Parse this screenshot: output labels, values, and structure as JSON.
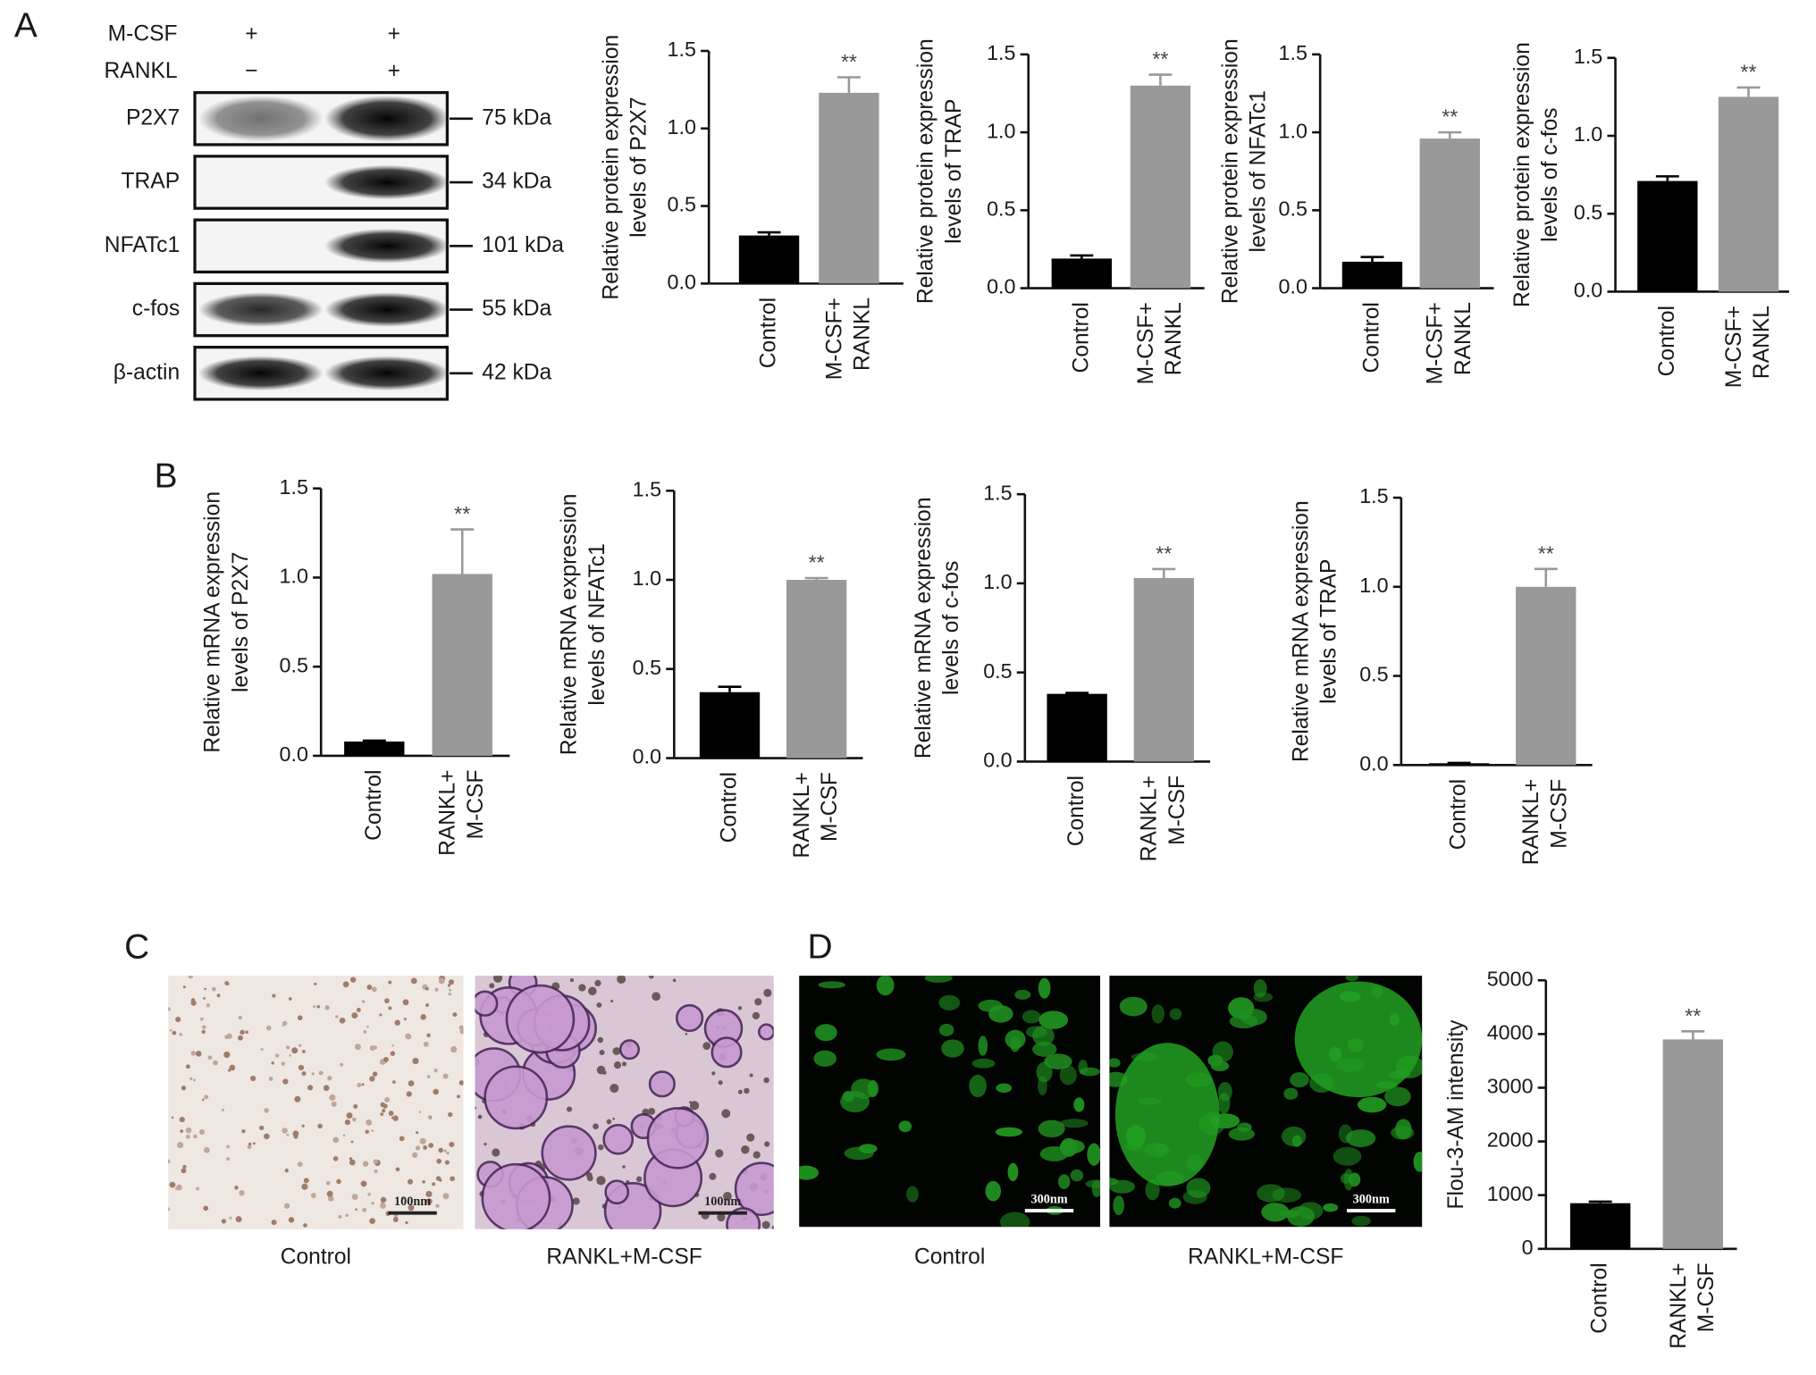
{
  "panel_labels": [
    "A",
    "B",
    "C",
    "D"
  ],
  "western_blot": {
    "treatments": [
      {
        "name": "M-CSF",
        "lanes": [
          "+",
          "+"
        ]
      },
      {
        "name": "RANKL",
        "lanes": [
          "−",
          "+"
        ]
      }
    ],
    "proteins": [
      {
        "name": "P2X7",
        "size": "75 kDa"
      },
      {
        "name": "TRAP",
        "size": "34 kDa"
      },
      {
        "name": "NFATc1",
        "size": "101 kDa"
      },
      {
        "name": "c-fos",
        "size": "55 kDa"
      },
      {
        "name": "β-actin",
        "size": "42 kDa"
      }
    ]
  },
  "micrographs": {
    "C": {
      "captions": [
        "Control",
        "RANKL+M-CSF"
      ],
      "scale_bar": "100nm"
    },
    "D": {
      "captions": [
        "Control",
        "RANKL+M-CSF"
      ],
      "scale_bar": "300nm"
    }
  },
  "chart_data": [
    {
      "type": "bar",
      "y_label": "Relative protein expression levels of P2X7",
      "categories": [
        "Control",
        "M-CSF+ RANKL"
      ],
      "values": [
        0.31,
        1.23
      ],
      "errors": [
        0.02,
        0.1
      ],
      "colors": [
        "#000000",
        "#999999"
      ],
      "significance": [
        null,
        "**"
      ],
      "ylim": [
        0,
        1.5
      ],
      "yticks": [
        {
          "value": 0,
          "label": "0.0"
        },
        {
          "value": 0.5,
          "label": "0.5"
        },
        {
          "value": 1,
          "label": "1.0"
        },
        {
          "value": 1.5,
          "label": "1.5"
        }
      ]
    },
    {
      "type": "bar",
      "y_label": "Relative protein expression levels of TRAP",
      "categories": [
        "Control",
        "M-CSF+ RANKL"
      ],
      "values": [
        0.19,
        1.3
      ],
      "errors": [
        0.02,
        0.07
      ],
      "colors": [
        "#000000",
        "#999999"
      ],
      "significance": [
        null,
        "**"
      ],
      "ylim": [
        0,
        1.5
      ],
      "yticks": [
        {
          "value": 0,
          "label": "0.0"
        },
        {
          "value": 0.5,
          "label": "0.5"
        },
        {
          "value": 1,
          "label": "1.0"
        },
        {
          "value": 1.5,
          "label": "1.5"
        }
      ]
    },
    {
      "type": "bar",
      "y_label": "Relative protein expression levels of NFATc1",
      "categories": [
        "Control",
        "M-CSF+ RANKL"
      ],
      "values": [
        0.17,
        0.96
      ],
      "errors": [
        0.03,
        0.04
      ],
      "colors": [
        "#000000",
        "#999999"
      ],
      "significance": [
        null,
        "**"
      ],
      "ylim": [
        0,
        1.5
      ],
      "yticks": [
        {
          "value": 0,
          "label": "0.0"
        },
        {
          "value": 0.5,
          "label": "0.5"
        },
        {
          "value": 1,
          "label": "1.0"
        },
        {
          "value": 1.5,
          "label": "1.5"
        }
      ]
    },
    {
      "type": "bar",
      "y_label": "Relative protein expression levels of c-fos",
      "categories": [
        "Control",
        "M-CSF+ RANKL"
      ],
      "values": [
        0.71,
        1.25
      ],
      "errors": [
        0.03,
        0.06
      ],
      "colors": [
        "#000000",
        "#999999"
      ],
      "significance": [
        null,
        "**"
      ],
      "ylim": [
        0,
        1.5
      ],
      "yticks": [
        {
          "value": 0,
          "label": "0.0"
        },
        {
          "value": 0.5,
          "label": "0.5"
        },
        {
          "value": 1,
          "label": "1.0"
        },
        {
          "value": 1.5,
          "label": "1.5"
        }
      ]
    },
    {
      "type": "bar",
      "y_label": "Relative mRNA expression levels of P2X7",
      "categories": [
        "Control",
        "RANKL+ M-CSF"
      ],
      "values": [
        0.08,
        1.02
      ],
      "errors": [
        0.005,
        0.25
      ],
      "colors": [
        "#000000",
        "#999999"
      ],
      "significance": [
        null,
        "**"
      ],
      "ylim": [
        0,
        1.5
      ],
      "yticks": [
        {
          "value": 0,
          "label": "0.0"
        },
        {
          "value": 0.5,
          "label": "0.5"
        },
        {
          "value": 1,
          "label": "1.0"
        },
        {
          "value": 1.5,
          "label": "1.5"
        }
      ]
    },
    {
      "type": "bar",
      "y_label": "Relative mRNA expression levels of NFATc1",
      "categories": [
        "Control",
        "RANKL+ M-CSF"
      ],
      "values": [
        0.37,
        1.0
      ],
      "errors": [
        0.03,
        0.01
      ],
      "colors": [
        "#000000",
        "#999999"
      ],
      "significance": [
        null,
        "**"
      ],
      "ylim": [
        0,
        1.5
      ],
      "yticks": [
        {
          "value": 0,
          "label": "0.0"
        },
        {
          "value": 0.5,
          "label": "0.5"
        },
        {
          "value": 1,
          "label": "1.0"
        },
        {
          "value": 1.5,
          "label": "1.5"
        }
      ]
    },
    {
      "type": "bar",
      "y_label": "Relative mRNA expression levels of c-fos",
      "categories": [
        "Control",
        "RANKL+ M-CSF"
      ],
      "values": [
        0.38,
        1.03
      ],
      "errors": [
        0.005,
        0.05
      ],
      "colors": [
        "#000000",
        "#999999"
      ],
      "significance": [
        null,
        "**"
      ],
      "ylim": [
        0,
        1.5
      ],
      "yticks": [
        {
          "value": 0,
          "label": "0.0"
        },
        {
          "value": 0.5,
          "label": "0.5"
        },
        {
          "value": 1,
          "label": "1.0"
        },
        {
          "value": 1.5,
          "label": "1.5"
        }
      ]
    },
    {
      "type": "bar",
      "y_label": "Relative mRNA expression levels of TRAP",
      "categories": [
        "Control",
        "RANKL+ M-CSF"
      ],
      "values": [
        0.01,
        1.0
      ],
      "errors": [
        0.002,
        0.1
      ],
      "colors": [
        "#000000",
        "#999999"
      ],
      "significance": [
        null,
        "**"
      ],
      "ylim": [
        0,
        1.5
      ],
      "yticks": [
        {
          "value": 0,
          "label": "0.0"
        },
        {
          "value": 0.5,
          "label": "0.5"
        },
        {
          "value": 1,
          "label": "1.0"
        },
        {
          "value": 1.5,
          "label": "1.5"
        }
      ]
    },
    {
      "type": "bar",
      "y_label": "Flou-3-AM intensity",
      "categories": [
        "Control",
        "RANKL+ M-CSF"
      ],
      "values": [
        850,
        3900
      ],
      "errors": [
        30,
        150
      ],
      "colors": [
        "#000000",
        "#999999"
      ],
      "significance": [
        null,
        "**"
      ],
      "ylim": [
        0,
        5000
      ],
      "yticks": [
        0,
        1000,
        2000,
        3000,
        4000,
        5000
      ]
    }
  ]
}
